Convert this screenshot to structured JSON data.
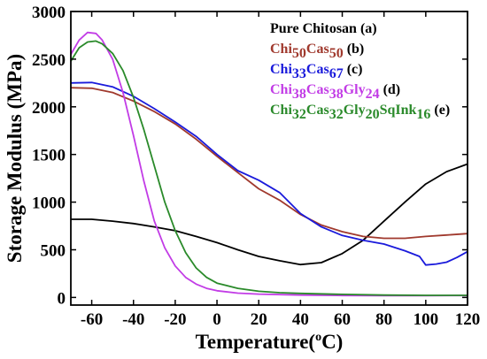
{
  "chart_data": {
    "type": "line",
    "xlabel_main": "Temperature(",
    "xlabel_sup": "o",
    "xlabel_tail": "C)",
    "ylabel": "Storage Modulus (MPa)",
    "xlim": [
      -70,
      120
    ],
    "ylim": [
      -80,
      3000
    ],
    "xticks": [
      -60,
      -40,
      -20,
      0,
      20,
      40,
      60,
      80,
      100,
      120
    ],
    "yticks": [
      0,
      500,
      1000,
      1500,
      2000,
      2500,
      3000
    ],
    "grid": false,
    "legend_position": "top-right",
    "series": [
      {
        "key": "a",
        "color": "#000000",
        "legend_parts": [
          {
            "t": "Pure Chitosan (a)",
            "sub": false
          }
        ],
        "points": [
          [
            -70,
            820
          ],
          [
            -60,
            820
          ],
          [
            -50,
            800
          ],
          [
            -40,
            775
          ],
          [
            -30,
            740
          ],
          [
            -20,
            700
          ],
          [
            -10,
            640
          ],
          [
            0,
            575
          ],
          [
            10,
            500
          ],
          [
            20,
            430
          ],
          [
            30,
            385
          ],
          [
            40,
            345
          ],
          [
            50,
            365
          ],
          [
            60,
            460
          ],
          [
            70,
            600
          ],
          [
            80,
            800
          ],
          [
            90,
            1000
          ],
          [
            100,
            1190
          ],
          [
            110,
            1320
          ],
          [
            120,
            1400
          ]
        ]
      },
      {
        "key": "b",
        "color": "#a0392d",
        "legend_parts": [
          {
            "t": "Chi",
            "sub": false
          },
          {
            "t": "50",
            "sub": true
          },
          {
            "t": "Cas",
            "sub": false
          },
          {
            "t": "50",
            "sub": true
          },
          {
            "t": " (b)",
            "sub": false
          }
        ],
        "points": [
          [
            -70,
            2200
          ],
          [
            -60,
            2195
          ],
          [
            -50,
            2150
          ],
          [
            -40,
            2060
          ],
          [
            -30,
            1950
          ],
          [
            -20,
            1820
          ],
          [
            -10,
            1660
          ],
          [
            0,
            1480
          ],
          [
            10,
            1310
          ],
          [
            20,
            1140
          ],
          [
            30,
            1020
          ],
          [
            40,
            870
          ],
          [
            50,
            760
          ],
          [
            60,
            690
          ],
          [
            70,
            640
          ],
          [
            80,
            620
          ],
          [
            90,
            620
          ],
          [
            100,
            640
          ],
          [
            110,
            655
          ],
          [
            120,
            670
          ]
        ]
      },
      {
        "key": "c",
        "color": "#1a1adb",
        "legend_parts": [
          {
            "t": "Chi",
            "sub": false
          },
          {
            "t": "33",
            "sub": true
          },
          {
            "t": "Cas",
            "sub": false
          },
          {
            "t": "67",
            "sub": true
          },
          {
            "t": " (c)",
            "sub": false
          }
        ],
        "points": [
          [
            -70,
            2250
          ],
          [
            -60,
            2255
          ],
          [
            -50,
            2210
          ],
          [
            -40,
            2110
          ],
          [
            -30,
            1980
          ],
          [
            -20,
            1840
          ],
          [
            -10,
            1690
          ],
          [
            0,
            1500
          ],
          [
            10,
            1330
          ],
          [
            20,
            1230
          ],
          [
            30,
            1100
          ],
          [
            40,
            880
          ],
          [
            50,
            740
          ],
          [
            60,
            650
          ],
          [
            70,
            600
          ],
          [
            75,
            580
          ],
          [
            80,
            560
          ],
          [
            90,
            490
          ],
          [
            97,
            430
          ],
          [
            100,
            340
          ],
          [
            105,
            350
          ],
          [
            110,
            370
          ],
          [
            115,
            420
          ],
          [
            120,
            480
          ]
        ]
      },
      {
        "key": "d",
        "color": "#c23ce6",
        "legend_parts": [
          {
            "t": "Chi",
            "sub": false
          },
          {
            "t": "38",
            "sub": true
          },
          {
            "t": "Cas",
            "sub": false
          },
          {
            "t": "38",
            "sub": true
          },
          {
            "t": "Gly",
            "sub": false
          },
          {
            "t": "24",
            "sub": true
          },
          {
            "t": " (d)",
            "sub": false
          }
        ],
        "points": [
          [
            -70,
            2550
          ],
          [
            -66,
            2700
          ],
          [
            -62,
            2780
          ],
          [
            -58,
            2770
          ],
          [
            -55,
            2700
          ],
          [
            -50,
            2500
          ],
          [
            -45,
            2150
          ],
          [
            -40,
            1700
          ],
          [
            -35,
            1220
          ],
          [
            -30,
            800
          ],
          [
            -25,
            520
          ],
          [
            -20,
            330
          ],
          [
            -15,
            210
          ],
          [
            -10,
            140
          ],
          [
            -5,
            95
          ],
          [
            0,
            70
          ],
          [
            10,
            45
          ],
          [
            20,
            35
          ],
          [
            40,
            25
          ],
          [
            60,
            20
          ],
          [
            80,
            18
          ],
          [
            100,
            18
          ],
          [
            120,
            20
          ]
        ]
      },
      {
        "key": "e",
        "color": "#2a8a2a",
        "legend_parts": [
          {
            "t": "Chi",
            "sub": false
          },
          {
            "t": "32",
            "sub": true
          },
          {
            "t": "Cas",
            "sub": false
          },
          {
            "t": "32",
            "sub": true
          },
          {
            "t": "Gly",
            "sub": false
          },
          {
            "t": "20",
            "sub": true
          },
          {
            "t": "SqInk",
            "sub": false
          },
          {
            "t": "16",
            "sub": true
          },
          {
            "t": " (e)",
            "sub": false
          }
        ],
        "points": [
          [
            -70,
            2480
          ],
          [
            -66,
            2620
          ],
          [
            -62,
            2680
          ],
          [
            -58,
            2690
          ],
          [
            -55,
            2660
          ],
          [
            -50,
            2560
          ],
          [
            -45,
            2380
          ],
          [
            -40,
            2100
          ],
          [
            -35,
            1760
          ],
          [
            -30,
            1380
          ],
          [
            -25,
            1000
          ],
          [
            -20,
            700
          ],
          [
            -15,
            470
          ],
          [
            -10,
            310
          ],
          [
            -5,
            210
          ],
          [
            0,
            150
          ],
          [
            10,
            95
          ],
          [
            20,
            65
          ],
          [
            30,
            50
          ],
          [
            40,
            42
          ],
          [
            60,
            32
          ],
          [
            80,
            25
          ],
          [
            100,
            22
          ],
          [
            120,
            22
          ]
        ]
      }
    ]
  }
}
